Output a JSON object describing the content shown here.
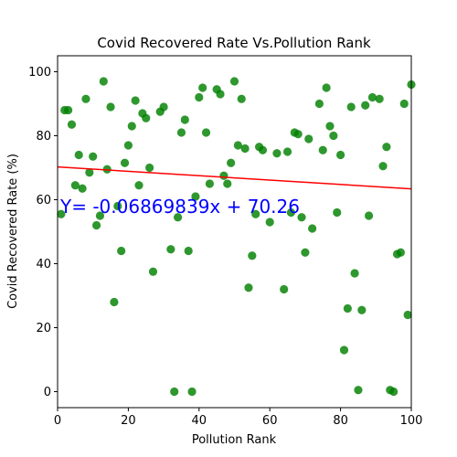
{
  "chart_data": {
    "type": "scatter",
    "title": "Covid Recovered Rate Vs.Pollution Rank",
    "xlabel": "Pollution Rank",
    "ylabel": "Covid Recovered Rate (%)",
    "xlim": [
      0,
      100
    ],
    "ylim": [
      -5,
      105
    ],
    "xticks": [
      0,
      20,
      40,
      60,
      80,
      100
    ],
    "yticks": [
      0,
      20,
      40,
      60,
      80,
      100
    ],
    "grid": false,
    "point_color": "#008000",
    "line_color": "#ff0000",
    "annotation_color": "#0000ff",
    "annotation": "Y= -0.06869839x + 70.26",
    "regression": {
      "slope": -0.06869839,
      "intercept": 70.26
    },
    "points": [
      [
        1,
        55.5
      ],
      [
        2,
        88
      ],
      [
        3,
        88
      ],
      [
        4,
        83.5
      ],
      [
        5,
        64.5
      ],
      [
        6,
        74
      ],
      [
        7,
        63.5
      ],
      [
        8,
        91.5
      ],
      [
        9,
        68.5
      ],
      [
        10,
        73.5
      ],
      [
        11,
        52
      ],
      [
        12,
        55
      ],
      [
        13,
        97
      ],
      [
        14,
        69.5
      ],
      [
        15,
        89
      ],
      [
        16,
        28
      ],
      [
        17,
        58
      ],
      [
        18,
        44
      ],
      [
        19,
        71.5
      ],
      [
        20,
        77
      ],
      [
        21,
        83
      ],
      [
        22,
        91
      ],
      [
        23,
        64.5
      ],
      [
        24,
        87
      ],
      [
        25,
        85.5
      ],
      [
        26,
        70
      ],
      [
        27,
        37.5
      ],
      [
        29,
        87.5
      ],
      [
        30,
        89
      ],
      [
        32,
        44.5
      ],
      [
        33,
        0
      ],
      [
        34,
        54.5
      ],
      [
        35,
        81
      ],
      [
        36,
        85
      ],
      [
        37,
        44
      ],
      [
        38,
        0
      ],
      [
        39,
        61
      ],
      [
        40,
        92
      ],
      [
        41,
        95
      ],
      [
        42,
        81
      ],
      [
        43,
        65
      ],
      [
        45,
        94.5
      ],
      [
        46,
        93
      ],
      [
        47,
        67.5
      ],
      [
        48,
        65
      ],
      [
        49,
        71.5
      ],
      [
        50,
        97
      ],
      [
        51,
        77
      ],
      [
        52,
        91.5
      ],
      [
        53,
        76
      ],
      [
        54,
        32.5
      ],
      [
        55,
        42.5
      ],
      [
        56,
        55.5
      ],
      [
        57,
        76.5
      ],
      [
        58,
        75.5
      ],
      [
        60,
        53
      ],
      [
        62,
        74.5
      ],
      [
        64,
        32
      ],
      [
        65,
        75
      ],
      [
        66,
        56
      ],
      [
        67,
        81
      ],
      [
        68,
        80.5
      ],
      [
        69,
        54.5
      ],
      [
        70,
        43.5
      ],
      [
        71,
        79
      ],
      [
        72,
        51
      ],
      [
        74,
        90
      ],
      [
        75,
        75.5
      ],
      [
        76,
        95
      ],
      [
        77,
        83
      ],
      [
        78,
        80
      ],
      [
        79,
        56
      ],
      [
        80,
        74
      ],
      [
        81,
        13
      ],
      [
        82,
        26
      ],
      [
        83,
        89
      ],
      [
        84,
        37
      ],
      [
        85,
        0.5
      ],
      [
        86,
        25.5
      ],
      [
        87,
        89.5
      ],
      [
        88,
        55
      ],
      [
        89,
        92
      ],
      [
        91,
        91.5
      ],
      [
        92,
        70.5
      ],
      [
        93,
        76.5
      ],
      [
        94,
        0.5
      ],
      [
        95,
        0
      ],
      [
        96,
        43
      ],
      [
        97,
        43.5
      ],
      [
        98,
        90
      ],
      [
        99,
        24
      ],
      [
        100,
        96
      ]
    ]
  }
}
